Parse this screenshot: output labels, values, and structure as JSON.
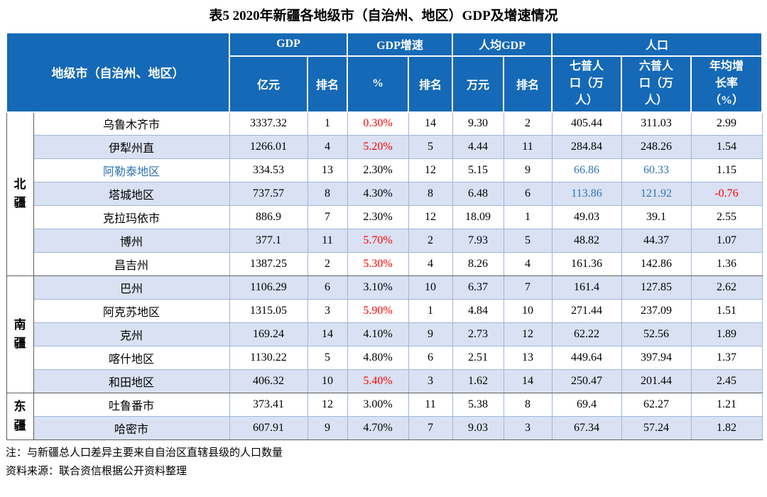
{
  "title": "表5 2020年新疆各地级市（自治州、地区）GDP及增速情况",
  "colors": {
    "header_bg": "#1569B6",
    "header_text": "#FFFFFF",
    "row_alt_bg": "#D9E1F3",
    "red_text": "#FF0000",
    "blue_text": "#2E74B5",
    "grid_line": "#A0B6D8",
    "dark_line": "#5F5F5F"
  },
  "table": {
    "corner_label": "地级市（自治州、地区）",
    "group_headers": [
      "GDP",
      "GDP增速",
      "人均GDP",
      "人口"
    ],
    "sub_headers": [
      "亿元",
      "排名",
      "%",
      "排名",
      "万元",
      "排名",
      "七普人口（万人）",
      "六普人口（万人）",
      "年均增长率（%）"
    ],
    "row_groups": [
      {
        "region": "北疆",
        "rows": [
          {
            "name": "乌鲁木齐市",
            "values": [
              "3337.32",
              "1",
              "0.30%",
              "14",
              "9.30",
              "2",
              "405.44",
              "311.03",
              "2.99"
            ],
            "red": [
              2
            ]
          },
          {
            "name": "伊犁州直",
            "values": [
              "1266.01",
              "4",
              "5.20%",
              "5",
              "4.44",
              "11",
              "284.84",
              "248.26",
              "1.54"
            ],
            "red": [
              2
            ]
          },
          {
            "name": "阿勒泰地区",
            "name_blue": true,
            "values": [
              "334.53",
              "13",
              "2.30%",
              "12",
              "5.15",
              "9",
              "66.86",
              "60.33",
              "1.15"
            ],
            "blue": [
              6,
              7
            ]
          },
          {
            "name": "塔城地区",
            "values": [
              "737.57",
              "8",
              "4.30%",
              "8",
              "6.48",
              "6",
              "113.86",
              "121.92",
              "-0.76"
            ],
            "blue": [
              6,
              7
            ],
            "red": [
              8
            ]
          },
          {
            "name": "克拉玛依市",
            "values": [
              "886.9",
              "7",
              "2.30%",
              "12",
              "18.09",
              "1",
              "49.03",
              "39.1",
              "2.55"
            ]
          },
          {
            "name": "博州",
            "values": [
              "377.1",
              "11",
              "5.70%",
              "2",
              "7.93",
              "5",
              "48.82",
              "44.37",
              "1.07"
            ],
            "red": [
              2
            ]
          },
          {
            "name": "昌吉州",
            "values": [
              "1387.25",
              "2",
              "5.30%",
              "4",
              "8.26",
              "4",
              "161.36",
              "142.86",
              "1.36"
            ],
            "red": [
              2
            ]
          }
        ]
      },
      {
        "region": "南疆",
        "rows": [
          {
            "name": "巴州",
            "values": [
              "1106.29",
              "6",
              "3.10%",
              "10",
              "6.37",
              "7",
              "161.4",
              "127.85",
              "2.62"
            ]
          },
          {
            "name": "阿克苏地区",
            "values": [
              "1315.05",
              "3",
              "5.90%",
              "1",
              "4.84",
              "10",
              "271.44",
              "237.09",
              "1.51"
            ],
            "red": [
              2
            ]
          },
          {
            "name": "克州",
            "values": [
              "169.24",
              "14",
              "4.10%",
              "9",
              "2.73",
              "12",
              "62.22",
              "52.56",
              "1.89"
            ]
          },
          {
            "name": "喀什地区",
            "values": [
              "1130.22",
              "5",
              "4.80%",
              "6",
              "2.51",
              "13",
              "449.64",
              "397.94",
              "1.37"
            ]
          },
          {
            "name": "和田地区",
            "values": [
              "406.32",
              "10",
              "5.40%",
              "3",
              "1.62",
              "14",
              "250.47",
              "201.44",
              "2.45"
            ],
            "red": [
              2
            ]
          }
        ]
      },
      {
        "region": "东疆",
        "rows": [
          {
            "name": "吐鲁番市",
            "values": [
              "373.41",
              "12",
              "3.00%",
              "11",
              "5.38",
              "8",
              "69.4",
              "62.27",
              "1.21"
            ]
          },
          {
            "name": "哈密市",
            "values": [
              "607.91",
              "9",
              "4.70%",
              "7",
              "9.03",
              "3",
              "67.34",
              "57.24",
              "1.82"
            ]
          }
        ]
      }
    ]
  },
  "notes": [
    "注：与新疆总人口差异主要来自自治区直辖县级的人口数量",
    "资料来源：联合资信根据公开资料整理"
  ]
}
